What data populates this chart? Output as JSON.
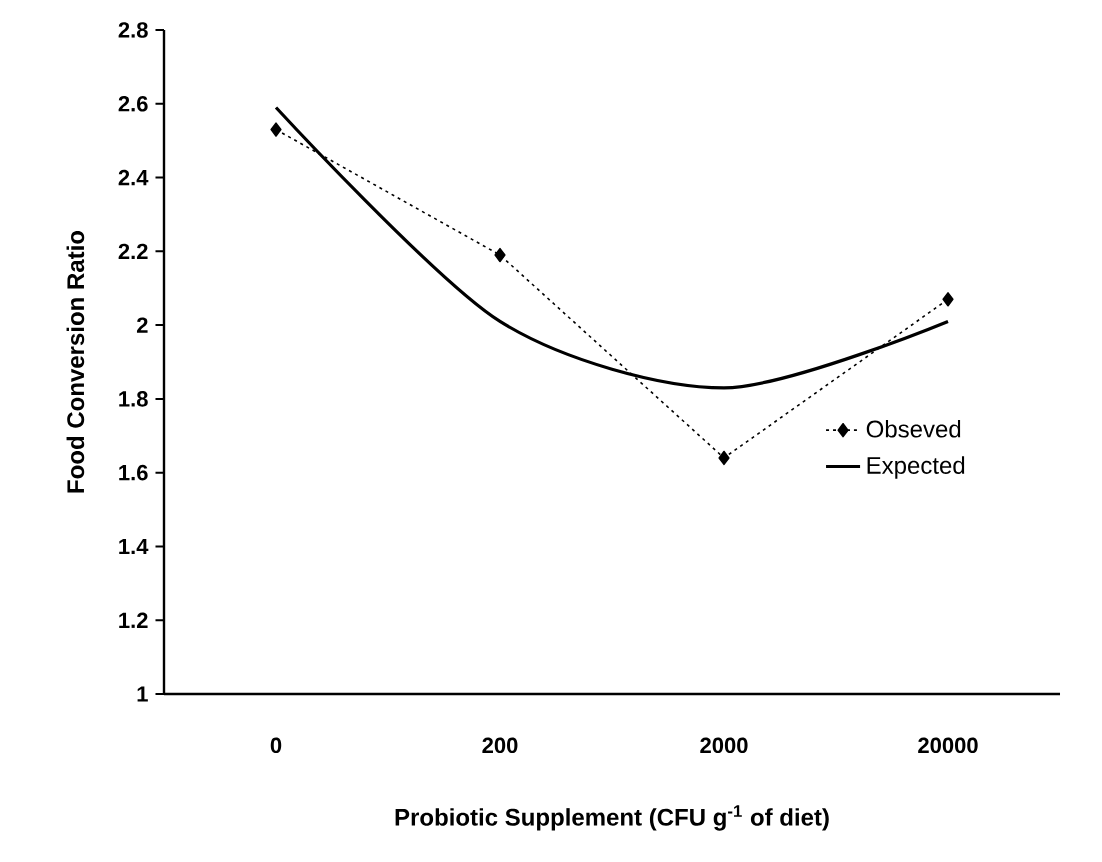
{
  "chart_data": {
    "type": "line",
    "xlabel": "Probiotic Supplement (CFU g$^{-1}$ of diet)",
    "ylabel": "Food Conversion Ratio",
    "categories": [
      "0",
      "200",
      "2000",
      "20000"
    ],
    "ylim": [
      1,
      2.8
    ],
    "yticks": [
      1,
      1.2,
      1.4,
      1.6,
      1.8,
      2,
      2.2,
      2.4,
      2.6,
      2.8
    ],
    "legend": "right",
    "series": [
      {
        "name": "Obseved",
        "color": "#000000",
        "marker": "diamond",
        "line_style": "dotted",
        "values": [
          2.53,
          2.19,
          1.64,
          2.07
        ]
      },
      {
        "name": "Expected",
        "color": "#000000",
        "marker": "none",
        "line_style": "solid",
        "values": [
          2.59,
          2.01,
          1.83,
          2.01
        ]
      }
    ]
  }
}
